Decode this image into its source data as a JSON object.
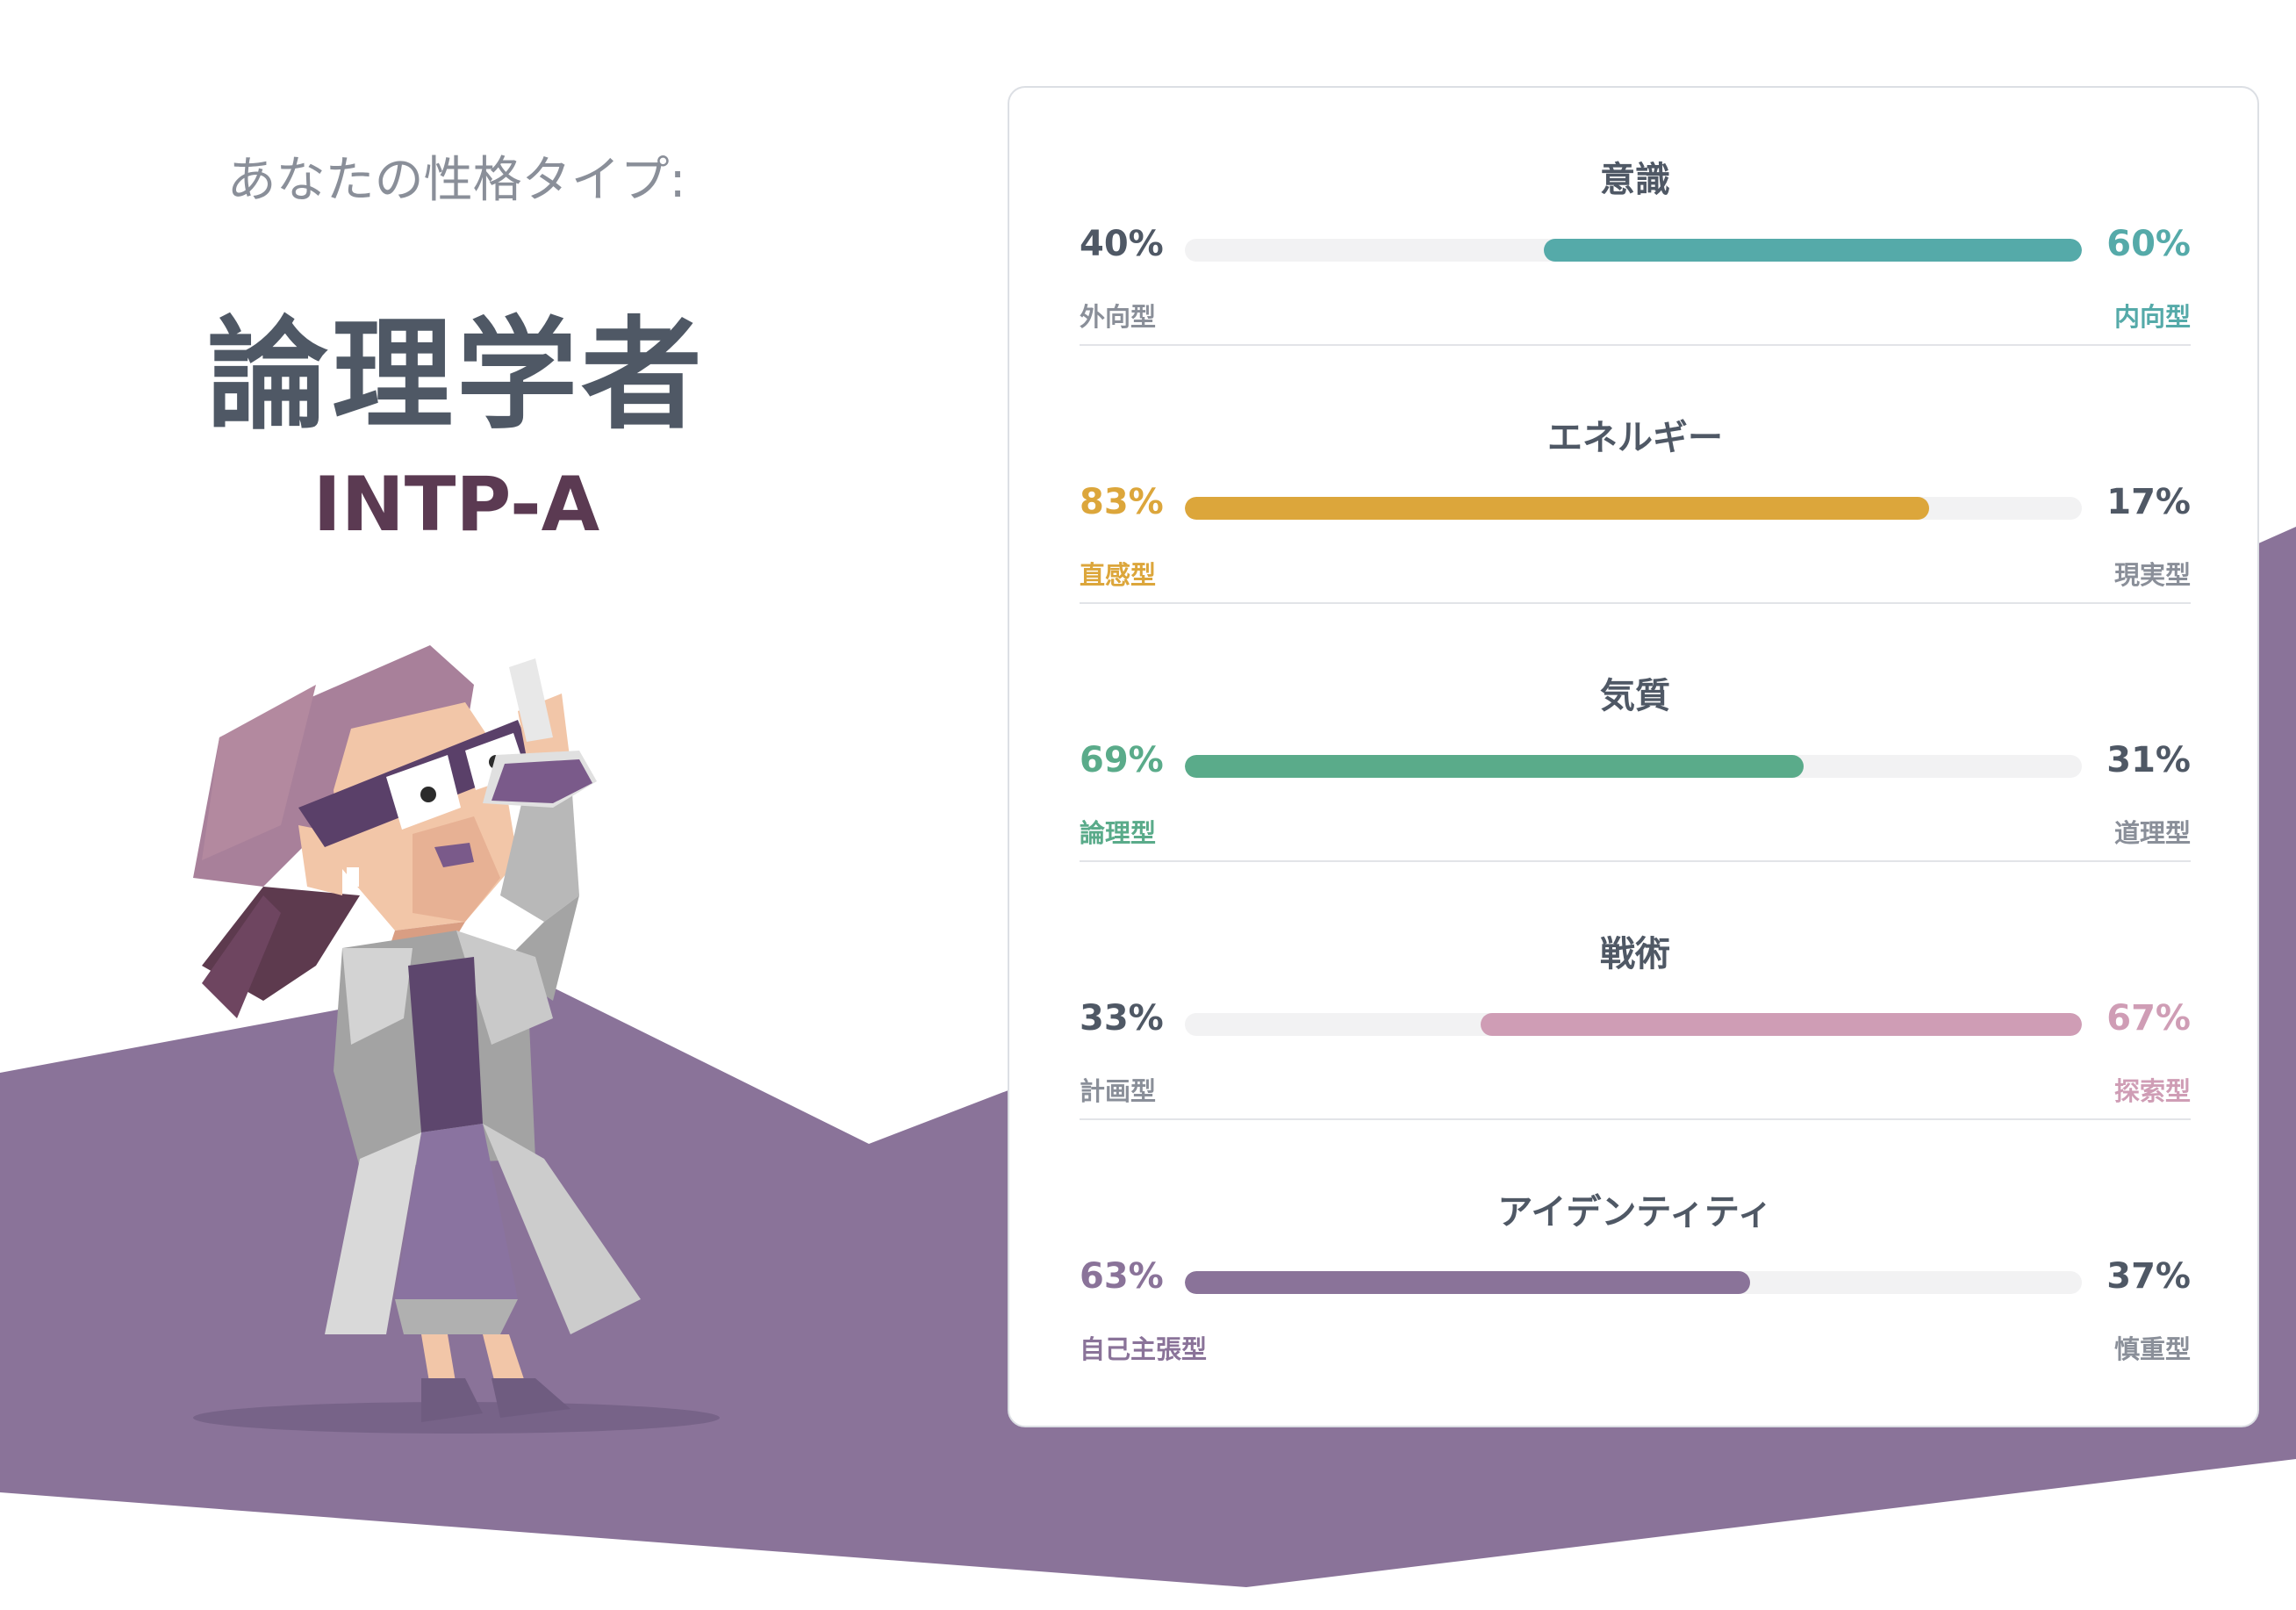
{
  "header": {
    "eyebrow": "あなたの性格タイプ:",
    "type_name": "論理学者",
    "type_code": "INTP-A"
  },
  "colors": {
    "background_band": "#8a7399",
    "title": "#4f5865",
    "code": "#5b3a52"
  },
  "illustration": {
    "icon": "scientist-character-icon"
  },
  "traits": [
    {
      "name": "意識",
      "left_pct": "40%",
      "right_pct": "60%",
      "left_label": "外向型",
      "right_label": "内向型",
      "dominant": "right",
      "value": 60,
      "color": "#55aaa9"
    },
    {
      "name": "エネルギー",
      "left_pct": "83%",
      "right_pct": "17%",
      "left_label": "直感型",
      "right_label": "現実型",
      "dominant": "left",
      "value": 83,
      "color": "#dca63b"
    },
    {
      "name": "気質",
      "left_pct": "69%",
      "right_pct": "31%",
      "left_label": "論理型",
      "right_label": "道理型",
      "dominant": "left",
      "value": 69,
      "color": "#5aab8a"
    },
    {
      "name": "戦術",
      "left_pct": "33%",
      "right_pct": "67%",
      "left_label": "計画型",
      "right_label": "探索型",
      "dominant": "right",
      "value": 67,
      "color": "#cf9db5"
    },
    {
      "name": "アイデンティティ",
      "left_pct": "63%",
      "right_pct": "37%",
      "left_label": "自己主張型",
      "right_label": "慎重型",
      "dominant": "left",
      "value": 63,
      "color": "#8a7399"
    }
  ]
}
